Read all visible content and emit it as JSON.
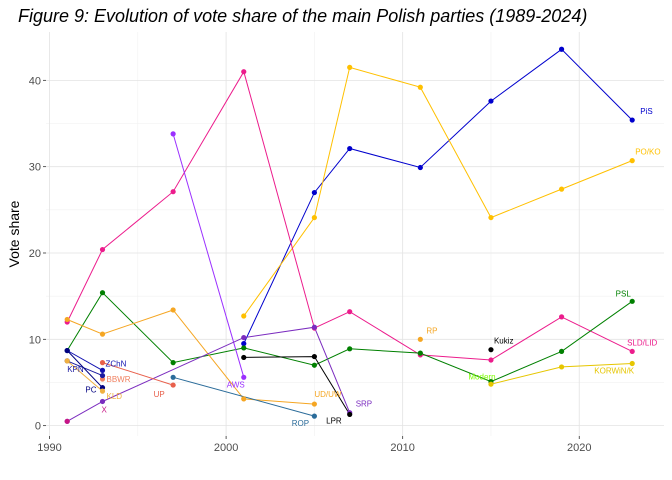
{
  "chart_data": {
    "type": "line",
    "title": "Figure 9: Evolution of vote share of the main Polish parties (1989-2024)",
    "xlabel": "",
    "ylabel": "Vote share",
    "xlim": [
      1989.8,
      2024.8
    ],
    "ylim": [
      -1.2,
      45.6
    ],
    "x_ticks": [
      1990,
      2000,
      2010,
      2020
    ],
    "y_ticks": [
      0,
      10,
      20,
      30,
      40
    ],
    "grid": true,
    "legend": "none (labels drawn next to lines)",
    "series": [
      {
        "name": "PiS",
        "color": "#0000cd",
        "x": [
          2001,
          2005,
          2007,
          2011,
          2015,
          2019,
          2023
        ],
        "y": [
          9.5,
          27.0,
          32.1,
          29.9,
          37.6,
          43.6,
          35.4
        ]
      },
      {
        "name": "PO/KO",
        "color": "#ffc000",
        "x": [
          2001,
          2005,
          2007,
          2011,
          2015,
          2019,
          2023
        ],
        "y": [
          12.7,
          24.1,
          41.5,
          39.2,
          24.1,
          27.4,
          30.7
        ]
      },
      {
        "name": "SLD/LID",
        "color": "#ec1c8c",
        "x": [
          1991,
          1993,
          1997,
          2001,
          2005,
          2007,
          2011,
          2015,
          2019,
          2023
        ],
        "y": [
          12.0,
          20.4,
          27.1,
          41.0,
          11.3,
          13.2,
          8.2,
          7.6,
          12.6,
          8.6
        ]
      },
      {
        "name": "PSL",
        "color": "#008000",
        "x": [
          1991,
          1993,
          1997,
          2001,
          2005,
          2007,
          2011,
          2015,
          2019,
          2023
        ],
        "y": [
          8.7,
          15.4,
          7.3,
          9.0,
          7.0,
          8.9,
          8.4,
          5.1,
          8.6,
          14.4
        ]
      },
      {
        "name": "KORWiN/K",
        "color": "#e6c600",
        "x": [
          2015,
          2019,
          2023
        ],
        "y": [
          4.8,
          6.8,
          7.2
        ]
      },
      {
        "name": "AWS",
        "color": "#9b30ff",
        "x": [
          1997,
          2001
        ],
        "y": [
          33.8,
          5.6
        ]
      },
      {
        "name": "UD/UW",
        "color": "#f5a623",
        "x": [
          1991,
          1993,
          1997,
          2001,
          2005
        ],
        "y": [
          12.3,
          10.6,
          13.4,
          3.1,
          2.5
        ]
      },
      {
        "name": "SRP",
        "color": "#7b2cbf",
        "x": [
          1991,
          1993,
          2001,
          2005,
          2007
        ],
        "y": [
          0.5,
          2.8,
          10.2,
          11.4,
          1.5
        ]
      },
      {
        "name": "LPR",
        "color": "#000000",
        "x": [
          2001,
          2005,
          2007
        ],
        "y": [
          7.9,
          8.0,
          1.3
        ]
      },
      {
        "name": "ROP",
        "color": "#2b6c9a",
        "x": [
          1997,
          2005
        ],
        "y": [
          5.6,
          1.1
        ]
      },
      {
        "name": "UP",
        "color": "#e8604c",
        "x": [
          1993,
          1997
        ],
        "y": [
          7.3,
          4.7
        ]
      },
      {
        "name": "BBWR",
        "color": "#f08060",
        "x": [
          1993
        ],
        "y": [
          5.4
        ]
      },
      {
        "name": "ZChN",
        "color": "#1010b0",
        "x": [
          1991,
          1993
        ],
        "y": [
          8.7,
          6.4
        ]
      },
      {
        "name": "KPN",
        "color": "#1a1aa0",
        "x": [
          1991,
          1993
        ],
        "y": [
          7.5,
          5.8
        ]
      },
      {
        "name": "PC",
        "color": "#000080",
        "x": [
          1991,
          1993
        ],
        "y": [
          8.7,
          4.4
        ]
      },
      {
        "name": "KLD",
        "color": "#f0b040",
        "x": [
          1991,
          1993
        ],
        "y": [
          7.5,
          4.0
        ]
      },
      {
        "name": "X",
        "color": "#c71585",
        "x": [
          1991
        ],
        "y": [
          0.5
        ]
      },
      {
        "name": "RP",
        "color": "#f5a623",
        "x": [
          2011
        ],
        "y": [
          10.0
        ]
      },
      {
        "name": "Kukiz",
        "color": "#000000",
        "x": [
          2015
        ],
        "y": [
          8.8
        ]
      },
      {
        "name": "Modern",
        "color": "#7cfc00",
        "x": [],
        "y": []
      }
    ]
  }
}
